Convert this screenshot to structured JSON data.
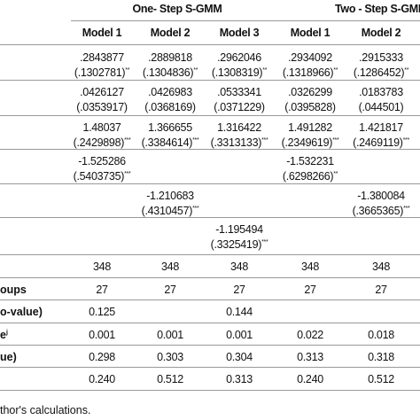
{
  "table": {
    "groups": [
      "One- Step S-GMM",
      "Two - Step S-GMM"
    ],
    "columns": [
      "Model 1",
      "Model 2",
      "Model 3",
      "Model 1",
      "Model 2"
    ],
    "rows": [
      {
        "label": null,
        "cells": [
          {
            "coef": ".2843877",
            "se": "(.1302781)",
            "stars": "**"
          },
          {
            "coef": ".2889818",
            "se": "(.1304836)",
            "stars": "**"
          },
          {
            "coef": ".2962046",
            "se": "(.1308319)",
            "stars": "**"
          },
          {
            "coef": ".2934092",
            "se": "(.1318966)",
            "stars": "**"
          },
          {
            "coef": ".2915333",
            "se": "(.1286452)",
            "stars": "**"
          }
        ]
      },
      {
        "label": null,
        "cells": [
          {
            "coef": ".0426127",
            "se": "(.0353917)",
            "stars": null
          },
          {
            "coef": ".0426983",
            "se": "(.0368169)",
            "stars": null
          },
          {
            "coef": ".0533341",
            "se": "(.0371229)",
            "stars": null
          },
          {
            "coef": ".0326299",
            "se": "(.0395828)",
            "stars": null
          },
          {
            "coef": ".0183783",
            "se": "(.044501)",
            "stars": null
          }
        ]
      },
      {
        "label": null,
        "cells": [
          {
            "coef": "1.48037",
            "se": "(.2429898)",
            "stars": "***"
          },
          {
            "coef": "1.366655",
            "se": "(.3384614)",
            "stars": "***"
          },
          {
            "coef": "1.316422",
            "se": "(.3313133)",
            "stars": "***"
          },
          {
            "coef": "1.491282",
            "se": "(.2349619)",
            "stars": "***"
          },
          {
            "coef": "1.421817",
            "se": "(.2469119)",
            "stars": "***"
          }
        ]
      },
      {
        "label": null,
        "cells": [
          {
            "coef": "-1.525286",
            "se": "(.5403735)",
            "stars": "***"
          },
          null,
          null,
          {
            "coef": "-1.532231",
            "se": "(.6298266)",
            "stars": "**"
          },
          null
        ]
      },
      {
        "label": null,
        "cells": [
          null,
          {
            "coef": "-1.210683",
            "se": "(.4310457)",
            "stars": "***"
          },
          null,
          null,
          {
            "coef": "-1.380084",
            "se": "(.3665365)",
            "stars": "***"
          }
        ]
      },
      {
        "label": null,
        "cells": [
          null,
          null,
          {
            "coef": "-1.195494",
            "se": "(.3325419)",
            "stars": "***"
          },
          null,
          null
        ]
      },
      {
        "label": null,
        "cells": [
          "348",
          "348",
          "348",
          "348",
          "348"
        ]
      },
      {
        "label": "oups",
        "cells": [
          "27",
          "27",
          "27",
          "27",
          "27"
        ]
      },
      {
        "label": "o-value)",
        "cells": [
          "0.125",
          null,
          "0.144",
          null,
          null
        ]
      },
      {
        "label": "e",
        "label_sup": "j",
        "cells": [
          "0.001",
          "0.001",
          "0.001",
          "0.022",
          "0.018"
        ]
      },
      {
        "label": "ue)",
        "cells": [
          "0.298",
          "0.303",
          "0.304",
          "0.313",
          "0.318"
        ]
      },
      {
        "label": null,
        "cells": [
          "0.240",
          "0.512",
          "0.313",
          "0.240",
          "0.512"
        ]
      }
    ],
    "note": "thor's calculations."
  }
}
